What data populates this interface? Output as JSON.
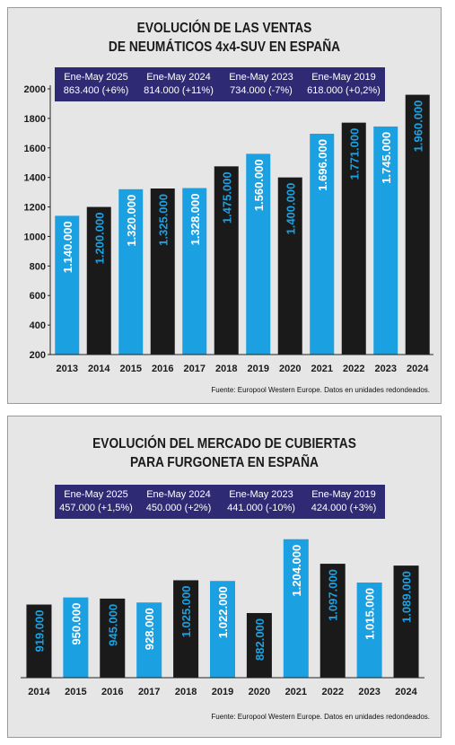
{
  "chart_data": [
    {
      "type": "bar",
      "title_lines": [
        "EVOLUCIÓN DE LAS VENTAS",
        "DE NEUMÁTICOS 4x4-SUV EN ESPAÑA"
      ],
      "categories": [
        "2013",
        "2014",
        "2015",
        "2016",
        "2017",
        "2018",
        "2019",
        "2020",
        "2021",
        "2022",
        "2023",
        "2024"
      ],
      "values": [
        1140000,
        1200000,
        1320000,
        1325000,
        1328000,
        1475000,
        1560000,
        1400000,
        1696000,
        1771000,
        1745000,
        1960000
      ],
      "value_labels": [
        "1.140.000",
        "1.200.000",
        "1.320.000",
        "1.325.000",
        "1.328.000",
        "1.475.000",
        "1.560.000",
        "1.400.000",
        "1.696.000",
        "1.771.000",
        "1.745.000",
        "1.960.000"
      ],
      "bar_colors": [
        "#1ba1e2",
        "#1a1a1a",
        "#1ba1e2",
        "#1a1a1a",
        "#1ba1e2",
        "#1a1a1a",
        "#1ba1e2",
        "#1a1a1a",
        "#1ba1e2",
        "#1a1a1a",
        "#1ba1e2",
        "#1a1a1a"
      ],
      "label_colors": [
        "#ffffff",
        "#1ba1e2",
        "#ffffff",
        "#1ba1e2",
        "#ffffff",
        "#1ba1e2",
        "#ffffff",
        "#1ba1e2",
        "#ffffff",
        "#1ba1e2",
        "#ffffff",
        "#1ba1e2"
      ],
      "yticks": [
        "200",
        "400",
        "600",
        "800",
        "1000",
        "1200",
        "1400",
        "1600",
        "1800",
        "2000"
      ],
      "ylim": [
        200,
        2000
      ],
      "value_unit": 1000,
      "stats": [
        {
          "period": "Ene-May 2025",
          "value": "863.400 (+6%)"
        },
        {
          "period": "Ene-May 2024",
          "value": "814.000 (+11%)"
        },
        {
          "period": "Ene-May 2023",
          "value": "734.000 (-7%)"
        },
        {
          "period": "Ene-May 2019",
          "value": "618.000 (+0,2%)"
        }
      ],
      "source": "Fuente: Europool Western Europe. Datos en unidades redondeados."
    },
    {
      "type": "bar",
      "title_lines": [
        "EVOLUCIÓN DEL MERCADO DE CUBIERTAS",
        "PARA FURGONETA EN ESPAÑA"
      ],
      "categories": [
        "2014",
        "2015",
        "2016",
        "2017",
        "2018",
        "2019",
        "2020",
        "2021",
        "2022",
        "2023",
        "2024"
      ],
      "values": [
        919000,
        950000,
        945000,
        928000,
        1025000,
        1022000,
        882000,
        1204000,
        1097000,
        1015000,
        1089000
      ],
      "value_labels": [
        "919.000",
        "950.000",
        "945.000",
        "928.000",
        "1.025.000",
        "1.022.000",
        "882.000",
        "1.204.000",
        "1.097.000",
        "1.015.000",
        "1.089.000"
      ],
      "bar_colors": [
        "#1a1a1a",
        "#1ba1e2",
        "#1a1a1a",
        "#1ba1e2",
        "#1a1a1a",
        "#1ba1e2",
        "#1a1a1a",
        "#1ba1e2",
        "#1a1a1a",
        "#1ba1e2",
        "#1a1a1a"
      ],
      "label_colors": [
        "#1ba1e2",
        "#ffffff",
        "#1ba1e2",
        "#ffffff",
        "#1ba1e2",
        "#ffffff",
        "#1ba1e2",
        "#ffffff",
        "#1ba1e2",
        "#ffffff",
        "#1ba1e2"
      ],
      "stats": [
        {
          "period": "Ene-May 2025",
          "value": "457.000 (+1,5%)"
        },
        {
          "period": "Ene-May 2024",
          "value": "450.000 (+2%)"
        },
        {
          "period": "Ene-May 2023",
          "value": "441.000 (-10%)"
        },
        {
          "period": "Ene-May 2019",
          "value": "424.000 (+3%)"
        }
      ],
      "source": "Fuente: Europool Western Europe. Datos en unidades redondeados."
    }
  ]
}
